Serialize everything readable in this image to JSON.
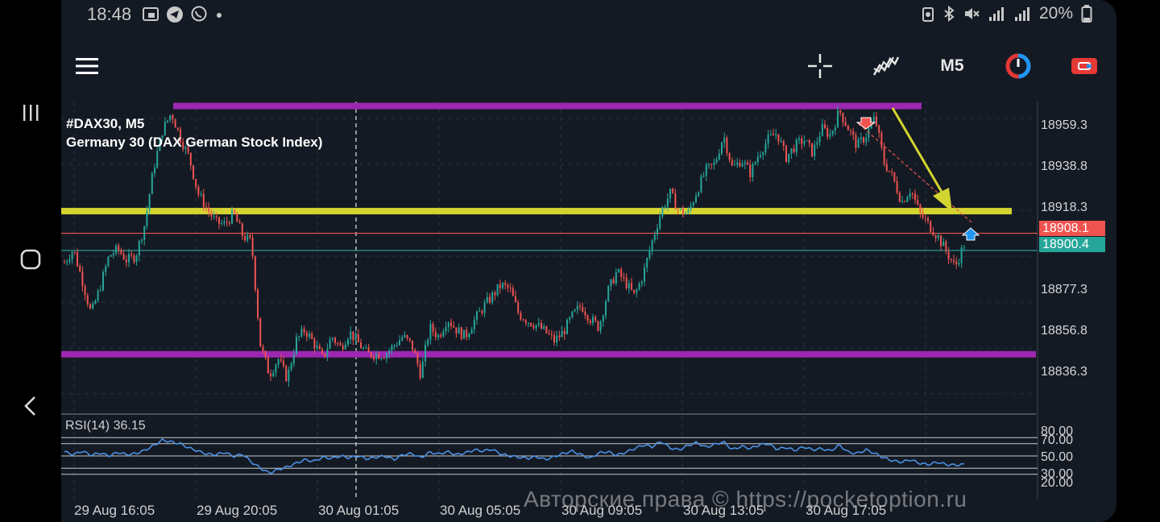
{
  "status_bar": {
    "time": "18:48",
    "battery": "20%",
    "left_icons": [
      "screenshot-icon",
      "telegram-icon",
      "viber-icon",
      "dot-icon"
    ],
    "right_icons": [
      "battery-saver-icon",
      "bluetooth-icon",
      "mute-icon",
      "signal-icon",
      "signal-icon",
      "battery-icon"
    ]
  },
  "toolbar": {
    "menu_icon": "hamburger-menu-icon",
    "crosshair_icon": "crosshair-icon",
    "indicators_icon": "indicators-icon",
    "timeframe": "M5",
    "trade_icon": "one-click-trade-icon",
    "account_icon": "account-icon"
  },
  "chart": {
    "symbol": "#DAX30, M5",
    "description": "Germany 30 (DAX German Stock Index)",
    "price_ticks": [
      "18959.3",
      "18938.8",
      "18918.3",
      "18897.8",
      "18877.3",
      "18856.8",
      "18836.3"
    ],
    "bid_price": "18900.4",
    "ask_price": "18908.1",
    "rsi_label": "RSI(14) 36.15",
    "rsi_ticks": [
      "80.00",
      "70.00",
      "50.00",
      "30.00",
      "20.00"
    ],
    "time_labels": [
      "29 Aug 16:05",
      "29 Aug 20:05",
      "30 Aug 01:05",
      "30 Aug 05:05",
      "30 Aug 09:05",
      "30 Aug 13:05",
      "30 Aug 17:05"
    ],
    "colors": {
      "background": "#141a24",
      "bull": "#26a69a",
      "bear": "#ef5350",
      "resistance": "#9c27b0",
      "support_line": "#d4d430",
      "ask_tag": "#ef5350",
      "bid_tag": "#26a69a",
      "rsi_line": "#4a90e2"
    }
  },
  "chart_data": {
    "type": "candlestick",
    "title": "#DAX30, M5",
    "subtitle": "Germany 30 (DAX German Stock Index)",
    "timeframe": "M5",
    "ylim": [
      18828,
      18967
    ],
    "y_ticks": [
      18959.3,
      18938.8,
      18918.3,
      18897.8,
      18877.3,
      18856.8,
      18836.3
    ],
    "x_labels": [
      "29 Aug 16:05",
      "29 Aug 20:05",
      "30 Aug 01:05",
      "30 Aug 05:05",
      "30 Aug 09:05",
      "30 Aug 13:05",
      "30 Aug 17:05"
    ],
    "close_path": [
      18895,
      18901,
      18887,
      18872,
      18884,
      18898,
      18901,
      18896,
      18898,
      18912,
      18937,
      18954,
      18962,
      18951,
      18942,
      18926,
      18919,
      18913,
      18912,
      18917,
      18907,
      18904,
      18858,
      18845,
      18852,
      18843,
      18860,
      18865,
      18859,
      18852,
      18862,
      18857,
      18864,
      18859,
      18854,
      18854,
      18854,
      18858,
      18862,
      18858,
      18845,
      18866,
      18862,
      18870,
      18865,
      18862,
      18869,
      18875,
      18880,
      18885,
      18883,
      18872,
      18869,
      18867,
      18864,
      18860,
      18864,
      18871,
      18876,
      18870,
      18866,
      18882,
      18891,
      18886,
      18880,
      18890,
      18905,
      18918,
      18926,
      18918,
      18917,
      18927,
      18936,
      18939,
      18952,
      18937,
      18941,
      18935,
      18944,
      18950,
      18953,
      18942,
      18947,
      18950,
      18944,
      18955,
      18952,
      18963,
      18955,
      18947,
      18952,
      18960,
      18940,
      18933,
      18922,
      18928,
      18917,
      18912,
      18907,
      18900,
      18893,
      18903
    ],
    "horizontal_levels": [
      {
        "name": "resistance",
        "price": 18965
      },
      {
        "name": "yellow level",
        "price": 18918
      },
      {
        "name": "support",
        "price": 18854
      },
      {
        "name": "ask",
        "price": 18908.1
      },
      {
        "name": "bid",
        "price": 18900.4
      }
    ],
    "indicator": {
      "name": "RSI(14)",
      "value": 36.15,
      "levels": [
        80,
        70,
        50,
        30,
        20
      ],
      "values": [
        57,
        52,
        58,
        51,
        55,
        50,
        56,
        52,
        54,
        59,
        67,
        76,
        73,
        70,
        63,
        58,
        53,
        52,
        56,
        49,
        53,
        40,
        30,
        22,
        28,
        32,
        38,
        44,
        41,
        48,
        46,
        50,
        47,
        50,
        45,
        48,
        50,
        44,
        52,
        54,
        47,
        56,
        53,
        57,
        52,
        55,
        60,
        58,
        61,
        53,
        50,
        48,
        46,
        49,
        44,
        49,
        54,
        58,
        52,
        46,
        55,
        57,
        51,
        56,
        62,
        68,
        65,
        74,
        63,
        60,
        67,
        72,
        64,
        69,
        73,
        60,
        66,
        62,
        68,
        70,
        61,
        64,
        59,
        65,
        60,
        62,
        58,
        68,
        56,
        54,
        60,
        54,
        47,
        42,
        40,
        44,
        38,
        36,
        40,
        36,
        35,
        36
      ]
    }
  },
  "watermark": "Авторские права © https://pocketoption.ru"
}
